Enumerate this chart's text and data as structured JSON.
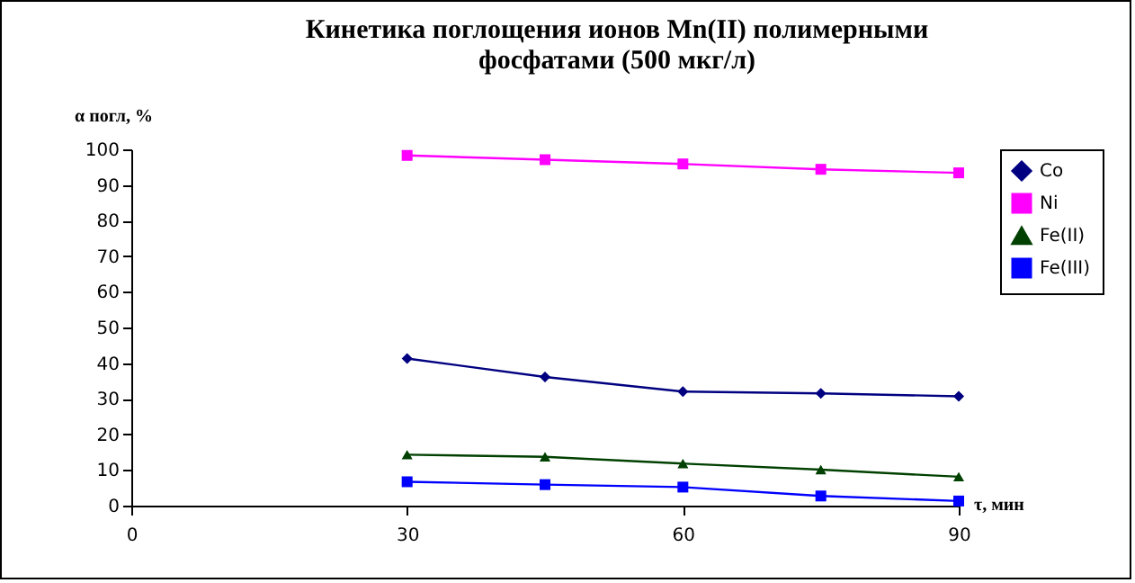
{
  "chart_data": {
    "type": "line",
    "title": "Кинетика поглощения ионов Mn(II) полимерными\nфосфатами (500 мкг/л)",
    "xlabel": "τ, мин",
    "ylabel": "α погл, %",
    "x": [
      30,
      45,
      60,
      75,
      90
    ],
    "series": [
      {
        "name": "Co",
        "color": "#000080",
        "marker": "diamond",
        "values": [
          41.3,
          36.1,
          32.0,
          31.5,
          30.7
        ]
      },
      {
        "name": "Ni",
        "color": "#ff00ff",
        "marker": "square",
        "values": [
          98.3,
          97.1,
          95.9,
          94.4,
          93.4
        ]
      },
      {
        "name": "Fe(II)",
        "color": "#004000",
        "marker": "triangle",
        "values": [
          14.3,
          13.7,
          11.8,
          10.1,
          8.1
        ]
      },
      {
        "name": "Fe(III)",
        "color": "#0000ff",
        "marker": "square",
        "values": [
          6.7,
          5.9,
          5.2,
          2.7,
          1.3
        ]
      }
    ],
    "xlim": [
      0,
      90
    ],
    "xticks": [
      0,
      30,
      60,
      90
    ],
    "ylim": [
      0,
      100
    ],
    "yticks": [
      0,
      10,
      20,
      30,
      40,
      50,
      60,
      70,
      80,
      90,
      100
    ],
    "grid": false,
    "legend": "right"
  }
}
